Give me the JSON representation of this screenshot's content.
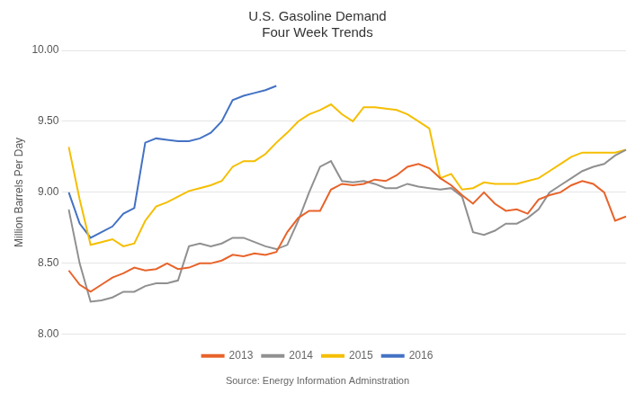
{
  "chart_data": {
    "type": "line",
    "title": "U.S. Gasoline Demand\nFour Week Trends",
    "ylabel": "Million Barrels Per Day",
    "annotations": [
      "Source: Energy Information Adminstration"
    ],
    "categories": [
      null,
      null,
      null,
      null,
      null,
      null,
      null,
      null,
      null,
      null,
      null,
      null,
      null,
      null,
      null,
      null,
      null,
      null,
      null,
      null,
      null,
      null,
      null,
      null,
      null,
      null,
      null,
      null,
      null,
      null,
      null,
      null,
      null,
      null,
      null,
      null,
      null,
      null,
      null,
      null,
      null,
      null,
      null,
      null,
      null,
      null,
      null,
      null,
      null,
      null,
      null,
      null
    ],
    "series": [
      {
        "name": "2013",
        "color": "#E8632A",
        "values": [
          8.45,
          8.35,
          8.3,
          8.35,
          8.4,
          8.43,
          8.47,
          8.45,
          8.46,
          8.5,
          8.46,
          8.47,
          8.5,
          8.5,
          8.52,
          8.56,
          8.55,
          8.57,
          8.56,
          8.58,
          8.72,
          8.82,
          8.87,
          8.87,
          9.02,
          9.06,
          9.05,
          9.06,
          9.09,
          9.08,
          9.12,
          9.18,
          9.2,
          9.17,
          9.1,
          9.05,
          8.98,
          8.92,
          9.0,
          8.92,
          8.87,
          8.88,
          8.85,
          8.95,
          8.98,
          9.0,
          9.05,
          9.08,
          9.06,
          9.0,
          8.8,
          8.83
        ]
      },
      {
        "name": "2014",
        "color": "#909090",
        "values": [
          8.88,
          8.5,
          8.23,
          8.24,
          8.26,
          8.3,
          8.3,
          8.34,
          8.36,
          8.36,
          8.38,
          8.62,
          8.64,
          8.62,
          8.64,
          8.68,
          8.68,
          8.65,
          8.62,
          8.6,
          8.63,
          8.8,
          9.0,
          9.18,
          9.22,
          9.08,
          9.07,
          9.08,
          9.06,
          9.03,
          9.03,
          9.06,
          9.04,
          9.03,
          9.02,
          9.03,
          8.97,
          8.72,
          8.7,
          8.73,
          8.78,
          8.78,
          8.82,
          8.88,
          9.0,
          9.05,
          9.1,
          9.15,
          9.18,
          9.2,
          9.26,
          9.3
        ]
      },
      {
        "name": "2015",
        "color": "#F5BE00",
        "values": [
          9.32,
          8.95,
          8.63,
          8.65,
          8.67,
          8.62,
          8.64,
          8.8,
          8.9,
          8.93,
          8.97,
          9.01,
          9.03,
          9.05,
          9.08,
          9.18,
          9.22,
          9.22,
          9.27,
          9.35,
          9.42,
          9.5,
          9.55,
          9.58,
          9.62,
          9.55,
          9.5,
          9.6,
          9.6,
          9.59,
          9.58,
          9.55,
          9.5,
          9.45,
          9.1,
          9.13,
          9.02,
          9.03,
          9.07,
          9.06,
          9.06,
          9.06,
          9.08,
          9.1,
          9.15,
          9.2,
          9.25,
          9.28,
          9.28,
          9.28,
          9.28,
          9.3
        ]
      },
      {
        "name": "2016",
        "color": "#4472C4",
        "values": [
          9.0,
          8.78,
          8.68,
          8.72,
          8.76,
          8.85,
          8.89,
          9.35,
          9.38,
          9.37,
          9.36,
          9.36,
          9.38,
          9.42,
          9.5,
          9.65,
          9.68,
          9.7,
          9.72,
          9.75,
          null,
          null,
          null,
          null,
          null,
          null,
          null,
          null,
          null,
          null,
          null,
          null,
          null,
          null,
          null,
          null,
          null,
          null,
          null,
          null,
          null,
          null,
          null,
          null,
          null,
          null,
          null,
          null,
          null,
          null,
          null,
          null
        ]
      }
    ],
    "ylim": [
      8.0,
      10.0
    ],
    "yticks": [
      {
        "value": 8.0,
        "label": "8.00"
      },
      {
        "value": 8.5,
        "label": "8.50"
      },
      {
        "value": 9.0,
        "label": "9.00"
      },
      {
        "value": 9.5,
        "label": "9.50"
      },
      {
        "value": 10.0,
        "label": "10.00"
      }
    ],
    "grid": true,
    "legend": "bottom",
    "tick_labels": "y"
  }
}
